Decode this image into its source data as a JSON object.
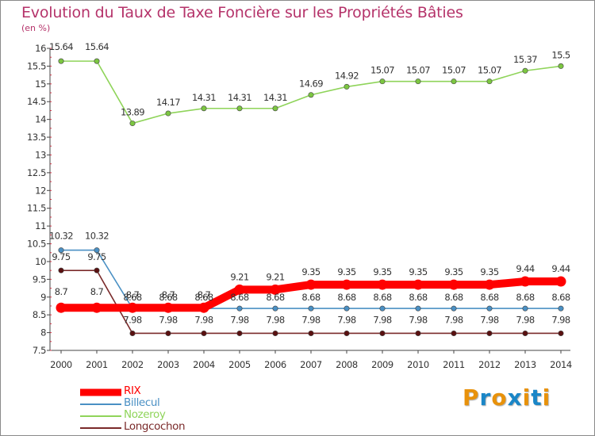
{
  "title": "Evolution du Taux de Taxe Foncière sur les Propriétés Bâties",
  "unit_label": "(en %)",
  "brand": {
    "letters": [
      "P",
      "r",
      "o",
      "x",
      "i",
      "t",
      "i"
    ],
    "colors": [
      "#e8920b",
      "#1a86c7",
      "#e8920b",
      "#1a86c7",
      "#e8920b",
      "#1a86c7",
      "#e8920b"
    ]
  },
  "chart_data": {
    "type": "line",
    "x": [
      "2000",
      "2001",
      "2002",
      "2003",
      "2004",
      "2005",
      "2006",
      "2007",
      "2008",
      "2009",
      "2010",
      "2011",
      "2012",
      "2013",
      "2014"
    ],
    "ylim": [
      7.5,
      16
    ],
    "yticks": [
      "7.5",
      "8",
      "8.5",
      "9",
      "9.5",
      "10",
      "10.5",
      "11",
      "11.5",
      "12",
      "12.5",
      "13",
      "13.5",
      "14",
      "14.5",
      "15",
      "15.5",
      "16"
    ],
    "grid": false,
    "series": [
      {
        "name": "RIX",
        "color": "#ff0000",
        "marker": "#ff0000",
        "values": [
          8.7,
          8.7,
          8.7,
          8.7,
          8.7,
          9.21,
          9.21,
          9.35,
          9.35,
          9.35,
          9.35,
          9.35,
          9.35,
          9.44,
          9.44
        ],
        "labels": [
          "8.7",
          "8.7",
          "8.7",
          "8.7",
          "8.7",
          "9.21",
          "9.21",
          "9.35",
          "9.35",
          "9.35",
          "9.35",
          "9.35",
          "9.35",
          "9.44",
          "9.44"
        ]
      },
      {
        "name": "Billecul",
        "color": "#4a90c4",
        "marker": "#4a90c4",
        "values": [
          10.32,
          10.32,
          8.68,
          8.68,
          8.68,
          8.68,
          8.68,
          8.68,
          8.68,
          8.68,
          8.68,
          8.68,
          8.68,
          8.68,
          8.68
        ],
        "labels": [
          "10.32",
          "10.32",
          "8.68",
          "8.68",
          "8.68",
          "8.68",
          "8.68",
          "8.68",
          "8.68",
          "8.68",
          "8.68",
          "8.68",
          "8.68",
          "8.68",
          "8.68"
        ]
      },
      {
        "name": "Nozeroy",
        "color": "#8fd45a",
        "marker": "#7cc641",
        "values": [
          15.64,
          15.64,
          13.89,
          14.17,
          14.31,
          14.31,
          14.31,
          14.69,
          14.92,
          15.07,
          15.07,
          15.07,
          15.07,
          15.37,
          15.5
        ],
        "labels": [
          "15.64",
          "15.64",
          "13.89",
          "14.17",
          "14.31",
          "14.31",
          "14.31",
          "14.69",
          "14.92",
          "15.07",
          "15.07",
          "15.07",
          "15.07",
          "15.37",
          "15.5"
        ]
      },
      {
        "name": "Longcochon",
        "color": "#7a2a2a",
        "marker": "#5a1010",
        "values": [
          9.75,
          9.75,
          7.98,
          7.98,
          7.98,
          7.98,
          7.98,
          7.98,
          7.98,
          7.98,
          7.98,
          7.98,
          7.98,
          7.98,
          7.98
        ],
        "labels": [
          "9.75",
          "9.75",
          "7.98",
          "7.98",
          "7.98",
          "7.98",
          "7.98",
          "7.98",
          "7.98",
          "7.98",
          "7.98",
          "7.98",
          "7.98",
          "7.98",
          "7.98"
        ]
      }
    ]
  }
}
